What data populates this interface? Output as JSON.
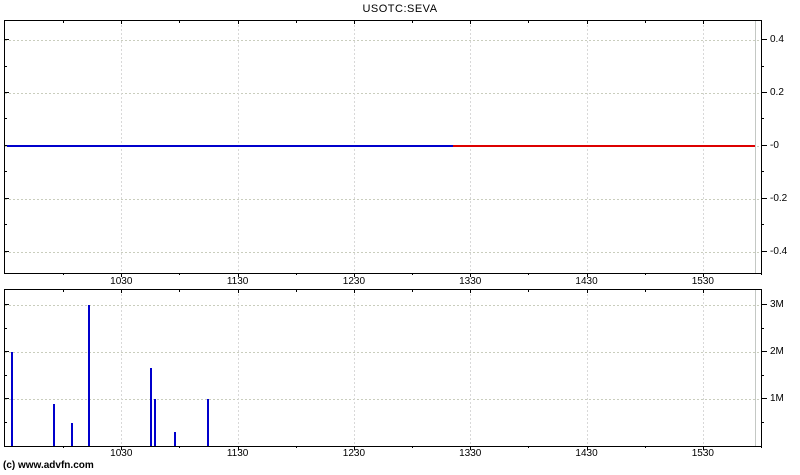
{
  "title": "USOTC:SEVA",
  "copyright": "(c) www.advfn.com",
  "colors": {
    "price_line_main": "#0000cc",
    "price_line_late": "#dd0000",
    "volume_bar": "#0000cc",
    "grid_horizontal": "#c9cdbd",
    "grid_vertical": "#d8d8d8",
    "end_marker": "#c4c8c4",
    "axis": "#000000",
    "background": "#ffffff"
  },
  "chart_data": [
    {
      "type": "line",
      "title": "USOTC:SEVA intraday price change",
      "x_time_range": [
        "0930",
        "1600"
      ],
      "x_tick_labels": [
        "1030",
        "1130",
        "1230",
        "1330",
        "1430",
        "1530"
      ],
      "x_minor_ticks": [
        "1000",
        "1100",
        "1200",
        "1300",
        "1400",
        "1500",
        "1600"
      ],
      "ylim": [
        -0.48,
        0.472
      ],
      "y_tick_values": [
        0.4,
        0.2,
        0,
        -0.2,
        -0.4
      ],
      "y_tick_labels": [
        "0.4",
        "0.2",
        "-0",
        "-0.2",
        "-0.4"
      ],
      "y_minor_ticks": [
        0.3,
        0.1,
        -0.1,
        -0.3
      ],
      "grid": true,
      "legend": "none",
      "series": [
        {
          "name": "price-flat-regular",
          "color_key": "price_line_main",
          "x": [
            "0931",
            "1321"
          ],
          "y": [
            0,
            0
          ]
        },
        {
          "name": "price-flat-late",
          "color_key": "price_line_late",
          "x": [
            "1321",
            "1557"
          ],
          "y": [
            0,
            0
          ]
        }
      ],
      "end_marker_time": "1557"
    },
    {
      "type": "bar",
      "title": "USOTC:SEVA intraday volume",
      "x_time_range": [
        "0930",
        "1600"
      ],
      "x_tick_labels": [
        "1030",
        "1130",
        "1230",
        "1330",
        "1430",
        "1530"
      ],
      "x_minor_ticks": [
        "1000",
        "1100",
        "1200",
        "1300",
        "1400",
        "1500",
        "1600"
      ],
      "ylim": [
        0,
        3.32
      ],
      "y_tick_values": [
        3,
        2,
        1
      ],
      "y_tick_labels": [
        "3M",
        "2M",
        "1M"
      ],
      "y_minor_ticks": [
        2.5,
        1.5,
        0.5
      ],
      "grid": true,
      "legend": "none",
      "bars": [
        {
          "time": "0933",
          "value_m": 2.0
        },
        {
          "time": "0955",
          "value_m": 0.9
        },
        {
          "time": "1004",
          "value_m": 0.5
        },
        {
          "time": "1013",
          "value_m": 3.0
        },
        {
          "time": "1045",
          "value_m": 1.65
        },
        {
          "time": "1047",
          "value_m": 1.0
        },
        {
          "time": "1057",
          "value_m": 0.3
        },
        {
          "time": "1114",
          "value_m": 1.0
        }
      ],
      "end_marker_time": "1557"
    }
  ]
}
